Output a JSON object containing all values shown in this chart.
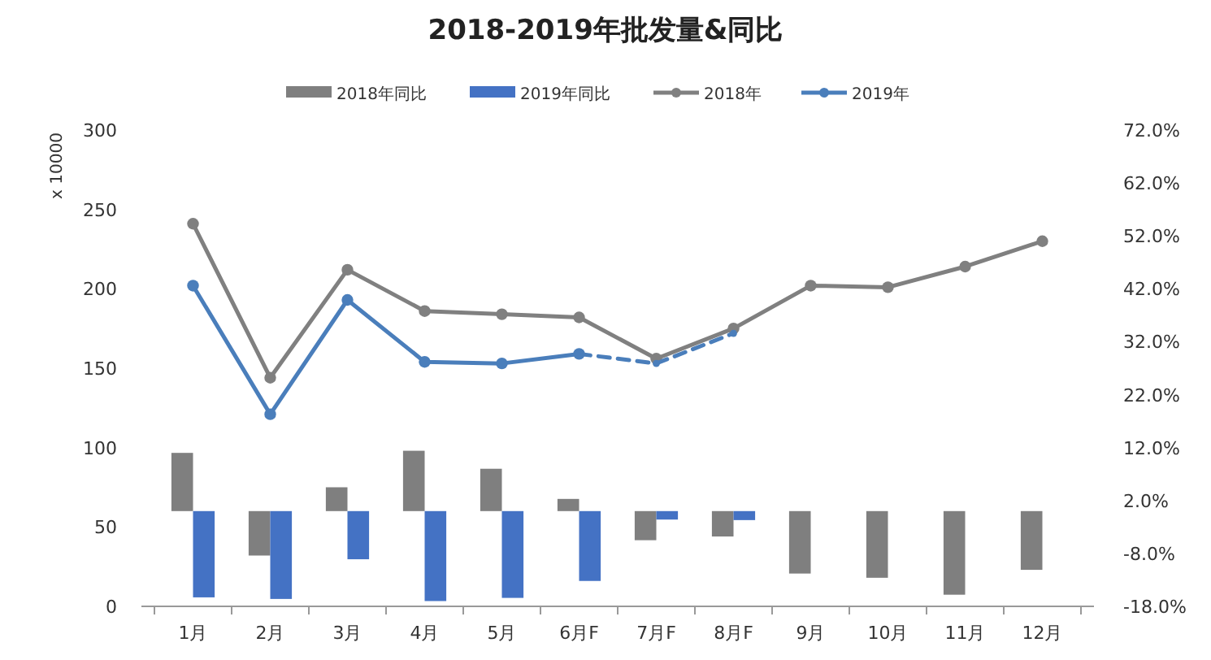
{
  "chart_data": {
    "type": "bar",
    "title": "2018-2019年批发量&同比",
    "ylabel": "x 10000",
    "categories": [
      "1月",
      "2月",
      "3月",
      "4月",
      "5月",
      "6月F",
      "7月F",
      "8月F",
      "9月",
      "10月",
      "11月",
      "12月"
    ],
    "ylim": [
      0,
      300
    ],
    "yticks": [
      0,
      50,
      100,
      150,
      200,
      250,
      300
    ],
    "y2lim": [
      -18,
      72
    ],
    "y2ticks": [
      {
        "value": -18,
        "label": "-18.0%"
      },
      {
        "value": -8,
        "label": "-8.0%"
      },
      {
        "value": 2,
        "label": "2.0%"
      },
      {
        "value": 12,
        "label": "12.0%"
      },
      {
        "value": 22,
        "label": "22.0%"
      },
      {
        "value": 32,
        "label": "32.0%"
      },
      {
        "value": 42,
        "label": "42.0%"
      },
      {
        "value": 52,
        "label": "52.0%"
      },
      {
        "value": 62,
        "label": "62.0%"
      },
      {
        "value": 72,
        "label": "72.0%"
      }
    ],
    "grid": false,
    "legend": "top",
    "marker": "circle",
    "series": [
      {
        "name": "2018年同比",
        "axis": "y2",
        "color": "#7f7f7f",
        "values": [
          11,
          -8.4,
          4.5,
          11.4,
          8,
          2.3,
          -5.5,
          -4.8,
          -11.8,
          -12.6,
          -15.8,
          -11.1
        ]
      },
      {
        "name": "2019年同比",
        "axis": "y2",
        "color": "#4472c4",
        "values": [
          -16.3,
          -16.6,
          -9.1,
          -17,
          -16.4,
          -13.2,
          -1.6,
          -1.7,
          null,
          null,
          null,
          null
        ]
      },
      {
        "type": "line",
        "name": "2018年",
        "color": "#808080",
        "values": [
          241,
          144,
          212,
          186,
          184,
          182,
          156,
          175,
          202,
          201,
          214,
          230
        ]
      },
      {
        "type": "line",
        "name": "2019年",
        "color": "#4a7ebb",
        "values": [
          202,
          121,
          193,
          154,
          153,
          159,
          null,
          null,
          null,
          null,
          null,
          null
        ]
      },
      {
        "type": "line",
        "color": "#4a7ebb",
        "line_style": "dashed",
        "values": [
          null,
          null,
          null,
          null,
          null,
          159,
          153,
          172,
          null,
          null,
          null,
          null
        ]
      }
    ]
  }
}
